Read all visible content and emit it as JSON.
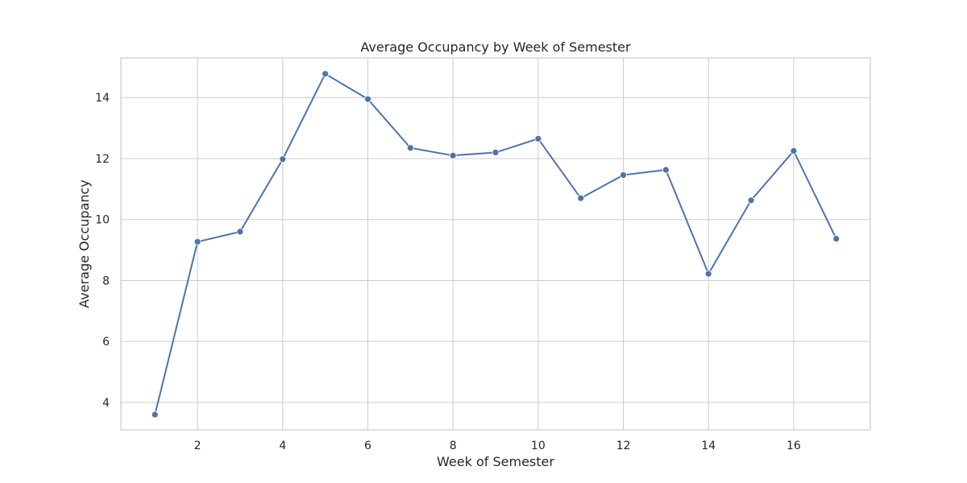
{
  "chart_data": {
    "type": "line",
    "title": "Average Occupancy by Week of Semester",
    "xlabel": "Week of Semester",
    "ylabel": "Average Occupancy",
    "xlim": [
      0.2,
      17.8
    ],
    "ylim": [
      3.1,
      15.3
    ],
    "xticks": [
      2,
      4,
      6,
      8,
      10,
      12,
      14,
      16
    ],
    "yticks": [
      4,
      6,
      8,
      10,
      12,
      14
    ],
    "grid": true,
    "legend": "none",
    "series": [
      {
        "color": "#4c72b0",
        "marker": "circle",
        "points": [
          {
            "x": 1,
            "y": 3.6
          },
          {
            "x": 2,
            "y": 9.27
          },
          {
            "x": 3,
            "y": 9.6
          },
          {
            "x": 4,
            "y": 11.98
          },
          {
            "x": 5,
            "y": 14.78
          },
          {
            "x": 6,
            "y": 13.95
          },
          {
            "x": 7,
            "y": 12.35
          },
          {
            "x": 8,
            "y": 12.1
          },
          {
            "x": 9,
            "y": 12.2
          },
          {
            "x": 10,
            "y": 12.65
          },
          {
            "x": 11,
            "y": 10.7
          },
          {
            "x": 12,
            "y": 11.46
          },
          {
            "x": 13,
            "y": 11.63
          },
          {
            "x": 14,
            "y": 8.22
          },
          {
            "x": 15,
            "y": 10.63
          },
          {
            "x": 16,
            "y": 12.25
          },
          {
            "x": 17,
            "y": 9.37
          }
        ]
      }
    ]
  },
  "colors": {
    "grid": "#cccccc",
    "frame": "#cccccc",
    "text": "#262626"
  }
}
